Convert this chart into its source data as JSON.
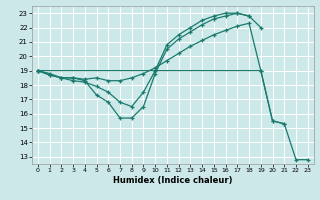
{
  "xlabel": "Humidex (Indice chaleur)",
  "bg_color": "#cce8e8",
  "grid_color": "#ffffff",
  "line_color": "#1a7a6e",
  "xlim": [
    -0.5,
    23.5
  ],
  "ylim": [
    12.5,
    23.5
  ],
  "xticks": [
    0,
    1,
    2,
    3,
    4,
    5,
    6,
    7,
    8,
    9,
    10,
    11,
    12,
    13,
    14,
    15,
    16,
    17,
    18,
    19,
    20,
    21,
    22,
    23
  ],
  "yticks": [
    13,
    14,
    15,
    16,
    17,
    18,
    19,
    20,
    21,
    22,
    23
  ],
  "line1_x": [
    0,
    1,
    2,
    3,
    4,
    5,
    6,
    7,
    8,
    9,
    10,
    11,
    12,
    13,
    14,
    15,
    16,
    17,
    18
  ],
  "line1_y": [
    19,
    18.7,
    18.5,
    18.5,
    18.3,
    17.3,
    16.8,
    15.7,
    15.7,
    16.5,
    18.8,
    20.5,
    21.2,
    21.7,
    22.2,
    22.6,
    22.8,
    23.0,
    22.8
  ],
  "line2_x": [
    0,
    1,
    2,
    3,
    4,
    5,
    6,
    7,
    8,
    9,
    10,
    11,
    12,
    13,
    14,
    15,
    16,
    17,
    18,
    19
  ],
  "line2_y": [
    19,
    18.7,
    18.5,
    18.3,
    18.2,
    17.9,
    17.5,
    16.8,
    16.5,
    17.5,
    19.0,
    20.8,
    21.5,
    22.0,
    22.5,
    22.8,
    23.0,
    23.0,
    22.8,
    22.0
  ],
  "line3_x": [
    0,
    1,
    2,
    3,
    4,
    5,
    6,
    7,
    8,
    9,
    10,
    11,
    12,
    13,
    14,
    15,
    16,
    17,
    18,
    19,
    20,
    21
  ],
  "line3_y": [
    19,
    18.8,
    18.5,
    18.5,
    18.4,
    18.5,
    18.3,
    18.3,
    18.5,
    18.8,
    19.2,
    19.7,
    20.2,
    20.7,
    21.1,
    21.5,
    21.8,
    22.1,
    22.3,
    19.0,
    15.5,
    15.3
  ],
  "line4_x": [
    0,
    19,
    20,
    21,
    22,
    23
  ],
  "line4_y": [
    19,
    19.0,
    15.5,
    15.3,
    12.8,
    12.8
  ]
}
